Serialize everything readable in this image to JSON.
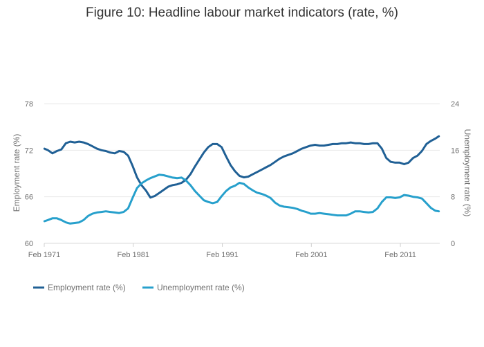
{
  "chart_data": {
    "type": "line",
    "title": "Figure 10: Headline labour market indicators (rate, %)",
    "ylabel_left": "Employment rate (%)",
    "ylabel_right": "Unemployment rate (%)",
    "x_ticks": [
      "Feb 1971",
      "Feb 1981",
      "Feb 1991",
      "Feb 2001",
      "Feb 2011"
    ],
    "x_tick_years": [
      1971.08,
      1981.08,
      1991.08,
      2001.08,
      2011.08
    ],
    "xlim": [
      1971.08,
      2015.5
    ],
    "ylim_left": [
      60,
      78
    ],
    "ylim_right": [
      0,
      24
    ],
    "y_ticks_left": [
      "60",
      "66",
      "72",
      "78"
    ],
    "y_ticks_right": [
      "0",
      "8",
      "16",
      "24"
    ],
    "grid": true,
    "legend_position": "bottom-left",
    "series": [
      {
        "name": "Employment rate (%)",
        "axis": "left",
        "color": "#206095",
        "points": [
          [
            1971.1,
            72.2
          ],
          [
            1971.5,
            72.0
          ],
          [
            1972.0,
            71.6
          ],
          [
            1972.5,
            71.9
          ],
          [
            1973.0,
            72.1
          ],
          [
            1973.5,
            72.9
          ],
          [
            1974.0,
            73.1
          ],
          [
            1974.5,
            73.0
          ],
          [
            1975.0,
            73.1
          ],
          [
            1975.5,
            73.0
          ],
          [
            1976.0,
            72.8
          ],
          [
            1976.5,
            72.5
          ],
          [
            1977.0,
            72.2
          ],
          [
            1977.5,
            72.0
          ],
          [
            1978.0,
            71.9
          ],
          [
            1978.5,
            71.7
          ],
          [
            1979.0,
            71.6
          ],
          [
            1979.5,
            71.9
          ],
          [
            1980.0,
            71.8
          ],
          [
            1980.5,
            71.3
          ],
          [
            1981.0,
            70.0
          ],
          [
            1981.5,
            68.5
          ],
          [
            1982.0,
            67.5
          ],
          [
            1982.5,
            66.8
          ],
          [
            1983.0,
            65.9
          ],
          [
            1983.5,
            66.1
          ],
          [
            1984.0,
            66.5
          ],
          [
            1984.5,
            66.9
          ],
          [
            1985.0,
            67.3
          ],
          [
            1985.5,
            67.5
          ],
          [
            1986.0,
            67.6
          ],
          [
            1986.5,
            67.8
          ],
          [
            1987.0,
            68.2
          ],
          [
            1987.5,
            68.9
          ],
          [
            1988.0,
            69.9
          ],
          [
            1988.5,
            70.8
          ],
          [
            1989.0,
            71.7
          ],
          [
            1989.5,
            72.4
          ],
          [
            1990.0,
            72.8
          ],
          [
            1990.5,
            72.8
          ],
          [
            1991.0,
            72.4
          ],
          [
            1991.5,
            71.2
          ],
          [
            1992.0,
            70.1
          ],
          [
            1992.5,
            69.3
          ],
          [
            1993.0,
            68.7
          ],
          [
            1993.5,
            68.5
          ],
          [
            1994.0,
            68.6
          ],
          [
            1994.5,
            68.9
          ],
          [
            1995.0,
            69.2
          ],
          [
            1995.5,
            69.5
          ],
          [
            1996.0,
            69.8
          ],
          [
            1996.5,
            70.1
          ],
          [
            1997.0,
            70.5
          ],
          [
            1997.5,
            70.9
          ],
          [
            1998.0,
            71.2
          ],
          [
            1998.5,
            71.4
          ],
          [
            1999.0,
            71.6
          ],
          [
            1999.5,
            71.9
          ],
          [
            2000.0,
            72.2
          ],
          [
            2000.5,
            72.4
          ],
          [
            2001.0,
            72.6
          ],
          [
            2001.5,
            72.7
          ],
          [
            2002.0,
            72.6
          ],
          [
            2002.5,
            72.6
          ],
          [
            2003.0,
            72.7
          ],
          [
            2003.5,
            72.8
          ],
          [
            2004.0,
            72.8
          ],
          [
            2004.5,
            72.9
          ],
          [
            2005.0,
            72.9
          ],
          [
            2005.5,
            73.0
          ],
          [
            2006.0,
            72.9
          ],
          [
            2006.5,
            72.9
          ],
          [
            2007.0,
            72.8
          ],
          [
            2007.5,
            72.8
          ],
          [
            2008.0,
            72.9
          ],
          [
            2008.5,
            72.9
          ],
          [
            2009.0,
            72.2
          ],
          [
            2009.5,
            71.0
          ],
          [
            2010.0,
            70.5
          ],
          [
            2010.5,
            70.4
          ],
          [
            2011.0,
            70.4
          ],
          [
            2011.5,
            70.2
          ],
          [
            2012.0,
            70.4
          ],
          [
            2012.5,
            71.0
          ],
          [
            2013.0,
            71.3
          ],
          [
            2013.5,
            71.9
          ],
          [
            2014.0,
            72.8
          ],
          [
            2014.5,
            73.2
          ],
          [
            2015.0,
            73.5
          ],
          [
            2015.4,
            73.8
          ]
        ]
      },
      {
        "name": "Unemployment rate (%)",
        "axis": "right",
        "color": "#27a0cc",
        "points": [
          [
            1971.1,
            3.8
          ],
          [
            1971.5,
            4.0
          ],
          [
            1972.0,
            4.3
          ],
          [
            1972.5,
            4.3
          ],
          [
            1973.0,
            4.0
          ],
          [
            1973.5,
            3.6
          ],
          [
            1974.0,
            3.4
          ],
          [
            1974.5,
            3.5
          ],
          [
            1975.0,
            3.6
          ],
          [
            1975.5,
            4.0
          ],
          [
            1976.0,
            4.7
          ],
          [
            1976.5,
            5.1
          ],
          [
            1977.0,
            5.3
          ],
          [
            1977.5,
            5.4
          ],
          [
            1978.0,
            5.5
          ],
          [
            1978.5,
            5.4
          ],
          [
            1979.0,
            5.3
          ],
          [
            1979.5,
            5.2
          ],
          [
            1980.0,
            5.4
          ],
          [
            1980.5,
            6.0
          ],
          [
            1981.0,
            7.8
          ],
          [
            1981.5,
            9.5
          ],
          [
            1982.0,
            10.3
          ],
          [
            1982.5,
            10.8
          ],
          [
            1983.0,
            11.2
          ],
          [
            1983.5,
            11.5
          ],
          [
            1984.0,
            11.8
          ],
          [
            1984.5,
            11.7
          ],
          [
            1985.0,
            11.5
          ],
          [
            1985.5,
            11.3
          ],
          [
            1986.0,
            11.2
          ],
          [
            1986.5,
            11.3
          ],
          [
            1987.0,
            10.8
          ],
          [
            1987.5,
            10.0
          ],
          [
            1988.0,
            9.0
          ],
          [
            1988.5,
            8.2
          ],
          [
            1989.0,
            7.4
          ],
          [
            1989.5,
            7.1
          ],
          [
            1990.0,
            6.9
          ],
          [
            1990.5,
            7.1
          ],
          [
            1991.0,
            8.1
          ],
          [
            1991.5,
            9.0
          ],
          [
            1992.0,
            9.6
          ],
          [
            1992.5,
            9.9
          ],
          [
            1993.0,
            10.4
          ],
          [
            1993.5,
            10.2
          ],
          [
            1994.0,
            9.6
          ],
          [
            1994.5,
            9.1
          ],
          [
            1995.0,
            8.7
          ],
          [
            1995.5,
            8.5
          ],
          [
            1996.0,
            8.2
          ],
          [
            1996.5,
            7.8
          ],
          [
            1997.0,
            7.0
          ],
          [
            1997.5,
            6.5
          ],
          [
            1998.0,
            6.3
          ],
          [
            1998.5,
            6.2
          ],
          [
            1999.0,
            6.1
          ],
          [
            1999.5,
            5.9
          ],
          [
            2000.0,
            5.6
          ],
          [
            2000.5,
            5.4
          ],
          [
            2001.0,
            5.1
          ],
          [
            2001.5,
            5.1
          ],
          [
            2002.0,
            5.2
          ],
          [
            2002.5,
            5.1
          ],
          [
            2003.0,
            5.0
          ],
          [
            2003.5,
            4.9
          ],
          [
            2004.0,
            4.8
          ],
          [
            2004.5,
            4.8
          ],
          [
            2005.0,
            4.8
          ],
          [
            2005.5,
            5.1
          ],
          [
            2006.0,
            5.5
          ],
          [
            2006.5,
            5.5
          ],
          [
            2007.0,
            5.4
          ],
          [
            2007.5,
            5.3
          ],
          [
            2008.0,
            5.4
          ],
          [
            2008.5,
            6.0
          ],
          [
            2009.0,
            7.1
          ],
          [
            2009.5,
            7.9
          ],
          [
            2010.0,
            7.9
          ],
          [
            2010.5,
            7.8
          ],
          [
            2011.0,
            7.9
          ],
          [
            2011.5,
            8.3
          ],
          [
            2012.0,
            8.2
          ],
          [
            2012.5,
            8.0
          ],
          [
            2013.0,
            7.9
          ],
          [
            2013.5,
            7.7
          ],
          [
            2014.0,
            6.9
          ],
          [
            2014.5,
            6.1
          ],
          [
            2015.0,
            5.6
          ],
          [
            2015.4,
            5.5
          ]
        ]
      }
    ]
  }
}
